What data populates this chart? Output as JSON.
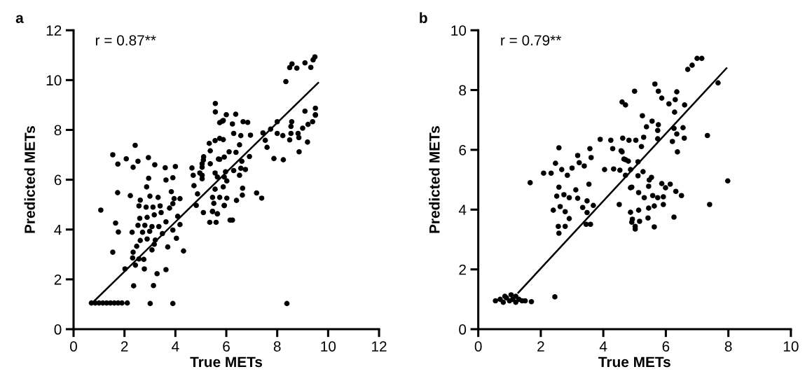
{
  "chart_data": [
    {
      "type": "scatter",
      "title": "a",
      "xlabel": "True METs",
      "ylabel": "Predicted METs",
      "annotations": [
        "r = 0.87**"
      ],
      "xlim": [
        0,
        12
      ],
      "ylim": [
        0,
        12
      ],
      "xticks": [
        0,
        2,
        4,
        6,
        8,
        10,
        12
      ],
      "yticks": [
        0,
        2,
        4,
        6,
        8,
        10,
        12
      ],
      "grid": false,
      "series": [
        {
          "marker": "circle",
          "color": "#000000",
          "x": [
            0.7,
            0.85,
            1.0,
            1.15,
            1.3,
            1.45,
            1.6,
            1.75,
            1.9,
            2.11,
            3.01,
            3.9,
            8.38,
            1.07,
            1.54,
            1.74,
            2.07,
            2.42,
            2.53,
            2.34,
            2.94,
            3.19,
            3.6,
            4.0,
            3.63,
            3.9,
            2.95,
            2.87,
            1.73,
            2.23,
            3.0,
            3.32,
            3.84,
            3.95,
            4.18,
            1.65,
            1.76,
            1.54,
            2.02,
            2.36,
            3.14,
            2.78,
            3.28,
            3.63,
            3.7,
            4.32,
            2.62,
            2.57,
            2.85,
            3.12,
            3.4,
            3.44,
            3.17,
            2.89,
            2.6,
            2.53,
            2.8,
            3.08,
            3.35,
            3.63,
            3.9,
            4.09,
            4.18,
            4.04,
            2.3,
            2.71,
            2.99,
            3.49,
            2.62,
            2.48,
            2.89,
            3.21,
            2.34,
            2.57,
            2.43,
            2.76,
            3.08,
            3.17,
            2.32,
            3.9,
            3.77,
            4.65,
            4.7,
            5.05,
            5.05,
            5.11,
            5.37,
            4.73,
            4.87,
            4.82,
            5.1,
            5.35,
            5.6,
            5.46,
            5.65,
            5.51,
            5.92,
            5.74,
            5.46,
            5.92,
            5.65,
            5.74,
            5.92,
            5.33,
            5.56,
            5.74,
            5.88,
            5.37,
            5.74,
            5.88,
            6.0,
            5.57,
            5.57,
            6.15,
            4.96,
            6.37,
            5.85,
            6.24,
            6.66,
            6.84,
            6.29,
            6.57,
            6.95,
            7.44,
            7.74,
            8.0,
            8.0,
            8.22,
            8.57,
            8.54,
            8.54,
            8.49,
            8.82,
            8.85,
            9.0,
            9.21,
            9.39,
            9.5,
            9.5,
            9.09,
            9.19,
            8.86,
            7.87,
            8.24,
            7.53,
            7.6,
            6.91,
            6.52,
            6.11,
            6.38,
            5.1,
            5.05,
            5.69,
            6.61,
            6.75,
            6.57,
            6.29,
            6.52,
            5.97,
            5.56,
            5.05,
            6.02,
            5.88,
            5.56,
            6.02,
            5.92,
            6.4,
            6.63,
            6.64,
            5.46,
            5.65,
            6.24,
            7.19,
            7.39,
            9.48,
            9.41,
            9.09,
            9.32,
            8.58,
            8.49,
            8.77,
            8.34,
            9.5
          ],
          "values": [
            1.05,
            1.05,
            1.05,
            1.05,
            1.05,
            1.05,
            1.05,
            1.05,
            1.05,
            1.05,
            1.03,
            1.03,
            1.03,
            4.78,
            7.0,
            6.63,
            6.84,
            7.38,
            6.74,
            6.5,
            6.89,
            6.6,
            6.48,
            6.53,
            5.99,
            6.08,
            6.06,
            5.71,
            5.48,
            5.36,
            5.34,
            5.29,
            5.52,
            5.24,
            5.24,
            4.26,
            3.9,
            3.09,
            2.42,
            1.74,
            1.75,
            2.42,
            2.23,
            2.39,
            3.3,
            3.14,
            5.18,
            4.95,
            4.9,
            4.9,
            4.95,
            4.68,
            4.59,
            4.49,
            4.45,
            4.17,
            4.17,
            4.12,
            4.12,
            4.31,
            3.98,
            4.53,
            4.2,
            3.65,
            3.89,
            3.89,
            3.93,
            3.84,
            3.56,
            3.33,
            3.62,
            3.58,
            3.09,
            2.82,
            2.57,
            2.8,
            3.18,
            3.41,
            2.86,
            5.04,
            4.86,
            6.47,
            6.18,
            6.64,
            6.18,
            6.92,
            6.64,
            5.76,
            5.43,
            4.97,
            4.68,
            4.29,
            4.29,
            4.72,
            4.63,
            5.05,
            4.97,
            5.29,
            5.29,
            6.11,
            6.11,
            6.82,
            6.91,
            7.46,
            7.57,
            7.66,
            7.61,
            7.16,
            8.29,
            8.38,
            8.61,
            9.06,
            8.72,
            4.38,
            6.27,
            8.63,
            8.35,
            8.24,
            8.33,
            8.3,
            7.86,
            7.77,
            7.79,
            7.88,
            8.03,
            8.33,
            7.86,
            7.77,
            8.33,
            8.14,
            7.86,
            7.6,
            7.86,
            7.69,
            8.07,
            8.22,
            8.33,
            8.61,
            8.87,
            8.75,
            7.51,
            7.12,
            6.85,
            6.8,
            7.58,
            7.3,
            6.93,
            7.4,
            7.12,
            7.1,
            6.79,
            6.5,
            6.83,
            6.74,
            6.41,
            6.46,
            6.37,
            6.18,
            6.32,
            6.27,
            6.04,
            5.95,
            5.71,
            5.62,
            5.26,
            4.96,
            5.17,
            5.38,
            5.66,
            4.73,
            4.63,
            4.38,
            5.47,
            5.26,
            10.93,
            10.81,
            10.69,
            10.51,
            10.65,
            10.5,
            10.48,
            9.94,
            8.59
          ]
        },
        {
          "type": "line",
          "marker": "none",
          "color": "#000000",
          "x": [
            0.8,
            9.61
          ],
          "values": [
            1.12,
            9.89
          ]
        }
      ]
    },
    {
      "type": "scatter",
      "title": "b",
      "xlabel": "True METs",
      "ylabel": "Predicted METs",
      "annotations": [
        "r = 0.79**"
      ],
      "xlim": [
        0,
        10
      ],
      "ylim": [
        0,
        10
      ],
      "xticks": [
        0,
        2,
        4,
        6,
        8,
        10
      ],
      "yticks": [
        0,
        2,
        4,
        6,
        8,
        10
      ],
      "grid": false,
      "series": [
        {
          "marker": "circle",
          "color": "#000000",
          "x": [
            0.55,
            0.7,
            0.8,
            0.9,
            1.0,
            1.1,
            1.2,
            1.3,
            1.4,
            1.5,
            1.7,
            0.85,
            1.05,
            1.2,
            2.45,
            1.66,
            2.09,
            2.33,
            2.58,
            2.47,
            2.67,
            2.85,
            3.0,
            3.18,
            3.23,
            3.39,
            3.57,
            3.61,
            3.54,
            2.58,
            2.51,
            2.74,
            2.91,
            3.12,
            3.18,
            2.4,
            2.62,
            2.78,
            2.91,
            3.34,
            3.48,
            3.68,
            3.48,
            3.45,
            3.59,
            2.56,
            2.78,
            2.58,
            3.9,
            4.24,
            4.3,
            4.62,
            4.82,
            4.57,
            4.66,
            4.8,
            4.04,
            4.33,
            4.53,
            4.71,
            4.87,
            4.51,
            4.87,
            4.87,
            4.91,
            5.02,
            5.25,
            5.56,
            5.76,
            5.74,
            5.38,
            5.04,
            5.29,
            5.22,
            5.74,
            6.26,
            6.35,
            6.55,
            6.59,
            6.21,
            6.37,
            7.33,
            7.98,
            7.4,
            4.6,
            4.71,
            5.11,
            5.11,
            5.27,
            5.47,
            5.54,
            5.45,
            4.91,
            5.87,
            5.99,
            6.14,
            6.32,
            6.5,
            5.13,
            5.31,
            5.58,
            5.74,
            5.92,
            5.63,
            5.92,
            5.45,
            5.43,
            6.26,
            5.13,
            5.16,
            4.93,
            5.02,
            5.63,
            7.0,
            7.15,
            6.84,
            6.7,
            7.67,
            5.65,
            5.76,
            5.87,
            5.0,
            4.6,
            4.71,
            6.28,
            6.1,
            6.6,
            6.35,
            6.3
          ],
          "values": [
            0.95,
            1.0,
            0.9,
            1.05,
            0.95,
            1.0,
            0.9,
            1.0,
            0.95,
            0.95,
            0.92,
            1.1,
            1.15,
            1.1,
            1.08,
            4.9,
            5.22,
            5.22,
            6.07,
            5.55,
            5.34,
            5.15,
            5.39,
            5.81,
            5.57,
            5.46,
            6.04,
            5.74,
            4.85,
            4.75,
            4.45,
            4.5,
            4.4,
            4.66,
            4.38,
            3.98,
            4.1,
            3.93,
            3.7,
            4.07,
            4.29,
            4.14,
            3.9,
            3.51,
            3.51,
            3.44,
            3.44,
            3.21,
            6.35,
            6.32,
            6.04,
            6.39,
            6.32,
            5.97,
            5.69,
            5.62,
            5.34,
            5.36,
            5.32,
            5.15,
            5.34,
            4.17,
            4.73,
            3.91,
            3.58,
            3.44,
            7.14,
            6.96,
            6.84,
            6.65,
            6.77,
            6.32,
            6.42,
            6.11,
            6.37,
            6.72,
            6.53,
            6.74,
            6.39,
            6.28,
            5.93,
            6.48,
            4.96,
            4.17,
            5.93,
            5.67,
            5.6,
            5.13,
            5.27,
            4.99,
            5.08,
            4.78,
            4.75,
            4.87,
            4.73,
            4.85,
            4.61,
            4.47,
            4.57,
            4.4,
            4.47,
            4.4,
            4.43,
            4.12,
            4.17,
            4.05,
            3.72,
            3.75,
            3.98,
            3.61,
            3.68,
            3.35,
            3.42,
            9.06,
            9.06,
            8.83,
            8.69,
            8.24,
            8.2,
            7.96,
            7.73,
            7.96,
            7.6,
            7.5,
            7.26,
            7.54,
            7.5,
            7.94,
            7.68
          ]
        },
        {
          "type": "line",
          "marker": "none",
          "color": "#000000",
          "x": [
            1.28,
            7.94
          ],
          "values": [
            1.22,
            8.73
          ]
        }
      ]
    }
  ]
}
